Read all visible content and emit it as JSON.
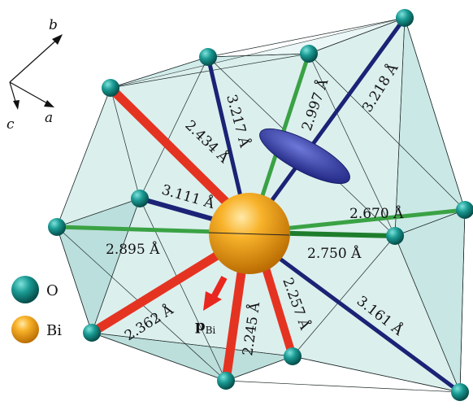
{
  "axes": {
    "a": "a",
    "b": "b",
    "c": "c"
  },
  "legend": [
    {
      "symbol": "O",
      "label": "O",
      "color": "#14807c"
    },
    {
      "symbol": "Bi",
      "label": "Bi",
      "color": "#f3a01a"
    }
  ],
  "bonds": [
    {
      "id": "bond-3-218",
      "label": "3.218 Å",
      "color": "#1a2375"
    },
    {
      "id": "bond-3-217",
      "label": "3.217 Å",
      "color": "#1a2375"
    },
    {
      "id": "bond-2-997",
      "label": "2.997 Å",
      "color": "#3aa244"
    },
    {
      "id": "bond-2-434",
      "label": "2.434 Å",
      "color": "#e53322"
    },
    {
      "id": "bond-3-111",
      "label": "3.111 Å",
      "color": "#1a2375"
    },
    {
      "id": "bond-2-670",
      "label": "2.670 Å",
      "color": "#3aa244"
    },
    {
      "id": "bond-2-895",
      "label": "2.895 Å",
      "color": "#3aa244"
    },
    {
      "id": "bond-2-750",
      "label": "2.750 Å",
      "color": "#1e7d2c"
    },
    {
      "id": "bond-2-362",
      "label": "2.362 Å",
      "color": "#e53322"
    },
    {
      "id": "bond-2-245",
      "label": "2.245 Å",
      "color": "#e53322"
    },
    {
      "id": "bond-2-257",
      "label": "2.257 Å",
      "color": "#e53322"
    },
    {
      "id": "bond-3-161",
      "label": "3.161 Å",
      "color": "#1a2375"
    }
  ],
  "polarization": {
    "symbol": "p",
    "subscript": "Bi",
    "arrow_color": "#e8281e"
  },
  "lone_pair_color": "#2f3aa0",
  "polyhedron_color": "#8fcdc8"
}
